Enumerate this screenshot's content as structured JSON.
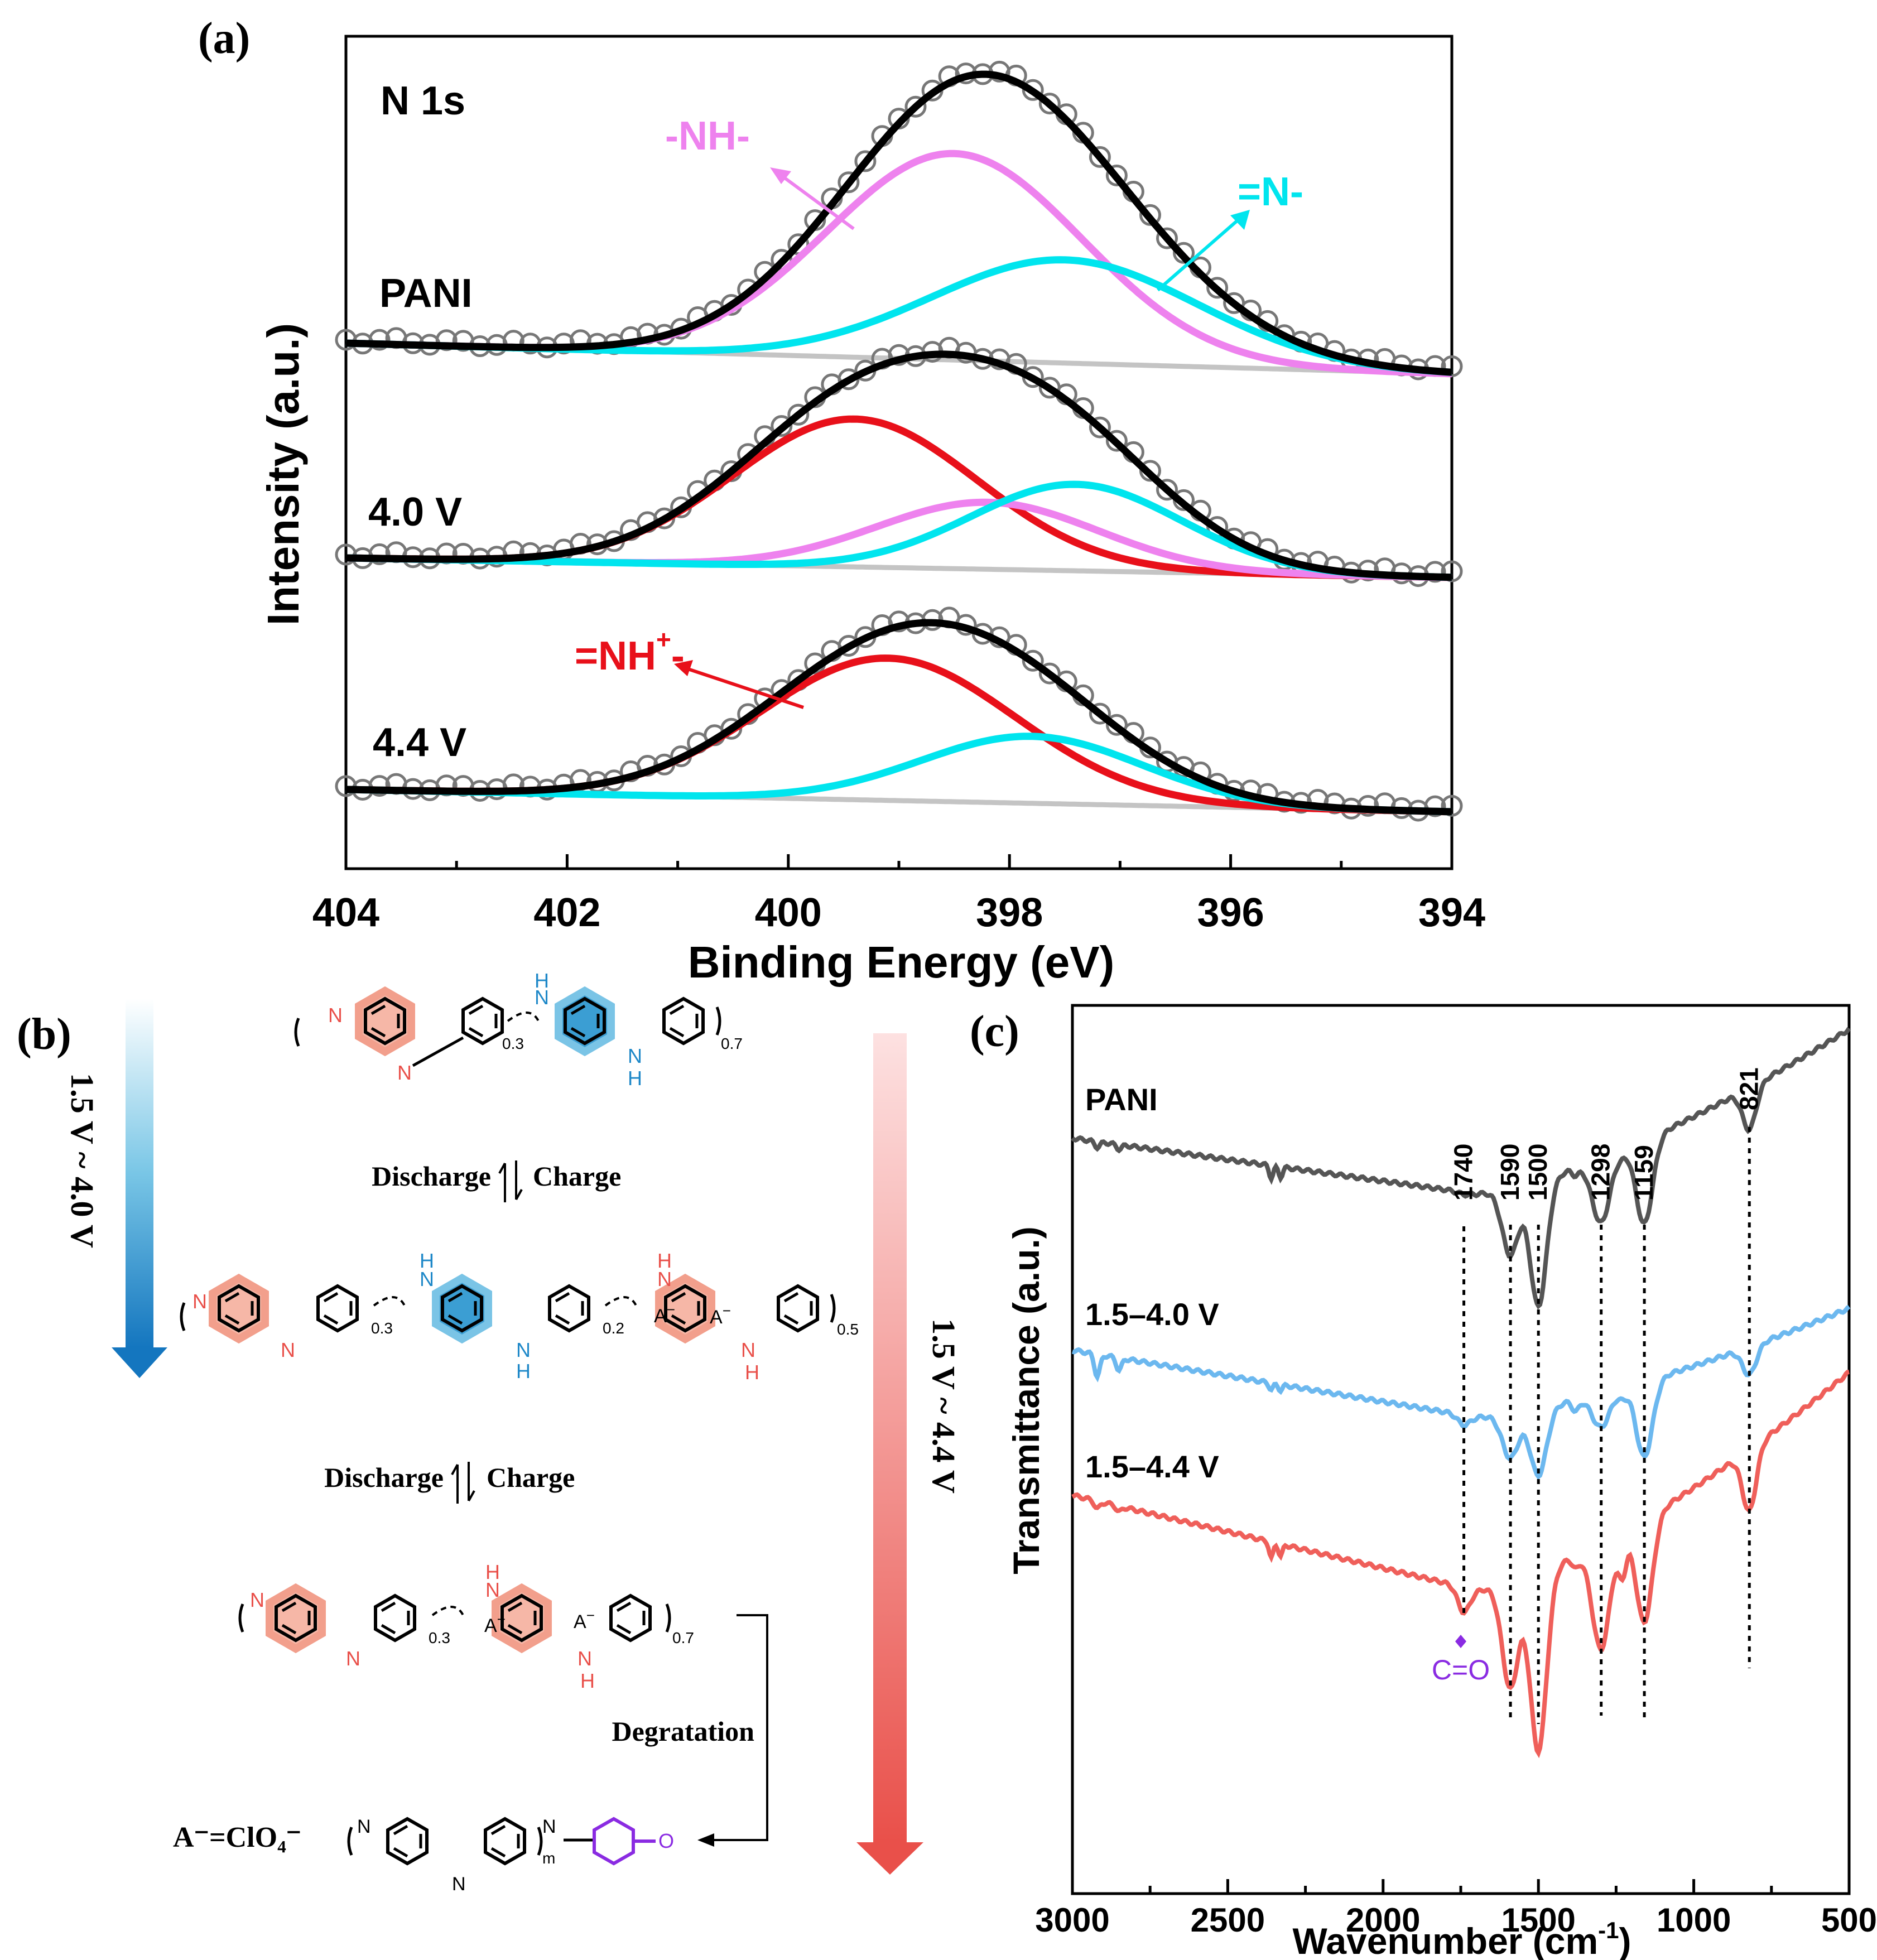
{
  "panel_a": {
    "label": "(a)",
    "title": "N 1s",
    "xlabel": "Binding Energy (eV)",
    "ylabel": "Intensity (a.u.)",
    "samples": [
      "PANI",
      "4.0 V",
      "4.4 V"
    ],
    "annotations": {
      "nh": "-NH-",
      "n": "=N-",
      "nh_plus": "=NH",
      "nh_plus_sup": "+",
      "nh_plus_tail": "-"
    }
  },
  "panel_b": {
    "label": "(b)",
    "arrow_left": "1.5 V ~ 4.0 V",
    "arrow_right": "1.5 V ~ 4.4 V",
    "discharge": "Discharge",
    "charge": "Charge",
    "degradation": "Degratation",
    "anion": "A⁻=ClO₄⁻",
    "sub_03": "0.3",
    "sub_07": "0.7",
    "sub_02": "0.2",
    "sub_05": "0.5",
    "sub_m": "m",
    "atom_n": "N",
    "atom_h": "H",
    "atom_o": "O",
    "atom_a": "A",
    "minus": "−",
    "plus": "+"
  },
  "panel_c": {
    "label": "(c)",
    "xlabel": "Wavenumber (cm",
    "xlabel_sup": "-1",
    "xlabel_end": ")",
    "ylabel": "Transmittance (a.u.)",
    "samples": [
      "PANI",
      "1.5–4.0 V",
      "1.5–4.4 V"
    ],
    "peaks": [
      "1740",
      "1590",
      "1500",
      "1298",
      "1159",
      "821"
    ],
    "co_label": "C=O"
  },
  "chart_data": [
    {
      "type": "line",
      "title": "N 1s",
      "xlabel": "Binding Energy (eV)",
      "ylabel": "Intensity (a.u.)",
      "xlim": [
        404,
        394
      ],
      "x_ticks": [
        404,
        402,
        400,
        398,
        396,
        394
      ],
      "series": [
        {
          "name": "PANI -NH-",
          "center": 398.5,
          "color": "#ee82ee"
        },
        {
          "name": "PANI =N-",
          "center": 397.5,
          "color": "#00e5ee"
        },
        {
          "name": "4.0 V =NH+-",
          "center": 399.4,
          "color": "#e8101a"
        },
        {
          "name": "4.0 V -NH-",
          "center": 398.2,
          "color": "#ee82ee"
        },
        {
          "name": "4.0 V =N-",
          "center": 397.4,
          "color": "#00e5ee"
        },
        {
          "name": "4.4 V =NH+-",
          "center": 399.1,
          "color": "#e8101a"
        },
        {
          "name": "4.4 V =N-",
          "center": 397.8,
          "color": "#00e5ee"
        }
      ]
    },
    {
      "type": "line",
      "xlabel": "Wavenumber (cm-1)",
      "ylabel": "Transmittance (a.u.)",
      "xlim": [
        3000,
        500
      ],
      "x_ticks": [
        3000,
        2500,
        2000,
        1500,
        1000,
        500
      ],
      "peak_positions": [
        1740,
        1590,
        1500,
        1298,
        1159,
        821
      ],
      "series": [
        {
          "name": "PANI",
          "color": "#555555"
        },
        {
          "name": "1.5–4.0 V",
          "color": "#6cb8ef"
        },
        {
          "name": "1.5–4.4 V",
          "color": "#ef5f5a"
        }
      ]
    }
  ]
}
